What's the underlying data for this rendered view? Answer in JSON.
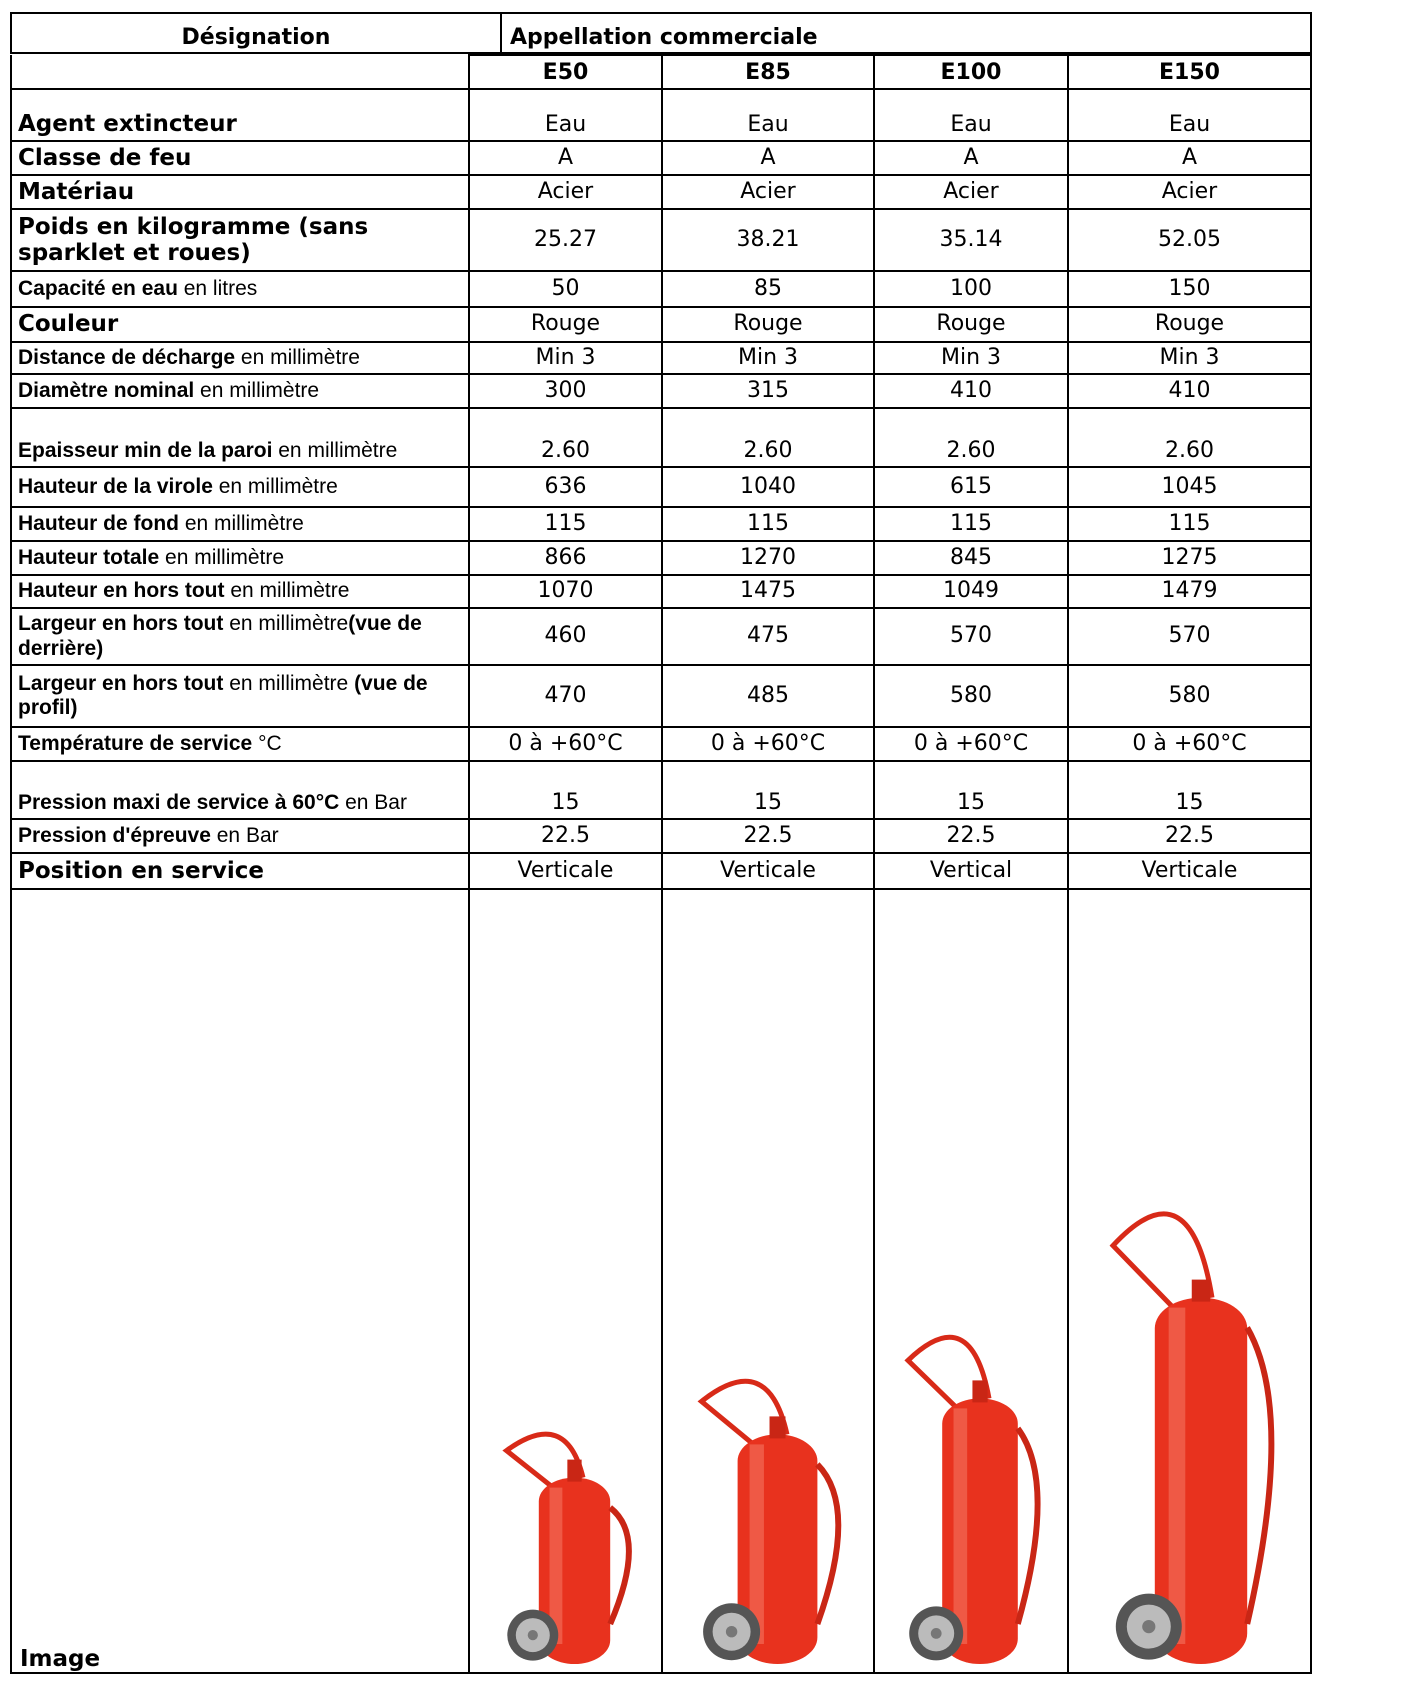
{
  "table": {
    "header": {
      "designation": "Désignation",
      "appellation": "Appellation commerciale"
    },
    "columns": [
      "E50",
      "E85",
      "E100",
      "E150"
    ],
    "rows": [
      {
        "label": [
          "Agent extincteur"
        ],
        "values": [
          "Eau",
          "Eau",
          "Eau",
          "Eau"
        ]
      },
      {
        "label": [
          "Classe de feu"
        ],
        "values": [
          "A",
          "A",
          "A",
          "A"
        ]
      },
      {
        "label": [
          "Matériau"
        ],
        "values": [
          "Acier",
          "Acier",
          "Acier",
          "Acier"
        ]
      },
      {
        "label": [
          "Poids en kilogramme (sans sparklet et roues)"
        ],
        "values": [
          "25.27",
          "38.21",
          "35.14",
          "52.05"
        ]
      },
      {
        "label": [
          "Capacité en eau",
          " en litres"
        ],
        "values": [
          "50",
          "85",
          "100",
          "150"
        ]
      },
      {
        "label": [
          "Couleur"
        ],
        "values": [
          "Rouge",
          "Rouge",
          "Rouge",
          "Rouge"
        ]
      },
      {
        "label": [
          "Distance de décharge",
          " en millimètre"
        ],
        "values": [
          "Min 3",
          "Min 3",
          "Min 3",
          "Min 3"
        ]
      },
      {
        "label": [
          "Diamètre nominal",
          " en millimètre"
        ],
        "values": [
          "300",
          "315",
          "410",
          "410"
        ]
      },
      {
        "label": [
          "Epaisseur min de la paroi",
          " en millimètre"
        ],
        "values": [
          "2.60",
          "2.60",
          "2.60",
          "2.60"
        ]
      },
      {
        "label": [
          "Hauteur de la virole",
          " en millimètre"
        ],
        "values": [
          "636",
          "1040",
          "615",
          "1045"
        ]
      },
      {
        "label": [
          "Hauteur de fond",
          " en millimètre"
        ],
        "values": [
          "115",
          "115",
          "115",
          "115"
        ]
      },
      {
        "label": [
          "Hauteur totale",
          " en millimètre"
        ],
        "values": [
          "866",
          "1270",
          "845",
          "1275"
        ]
      },
      {
        "label": [
          "Hauteur en hors tout",
          " en millimètre"
        ],
        "values": [
          "1070",
          "1475",
          "1049",
          "1479"
        ]
      },
      {
        "label": [
          "Largeur en hors tout",
          " en millimètre",
          "(vue de derrière)"
        ],
        "values": [
          "460",
          "475",
          "570",
          "570"
        ]
      },
      {
        "label": [
          "Largeur en hors tout",
          " en millimètre ",
          "(vue de profil)"
        ],
        "values": [
          "470",
          "485",
          "580",
          "580"
        ]
      },
      {
        "label": [
          "Température de service",
          " °C"
        ],
        "values": [
          "0 à +60°C",
          "0 à +60°C",
          "0 à +60°C",
          "0 à +60°C"
        ]
      },
      {
        "label": [
          "Pression maxi de service à 60°C",
          " en Bar"
        ],
        "values": [
          "15",
          "15",
          "15",
          "15"
        ]
      },
      {
        "label": [
          "Pression d'épreuve",
          " en Bar"
        ],
        "values": [
          "22.5",
          "22.5",
          "22.5",
          "22.5"
        ]
      },
      {
        "label": [
          "Position en service"
        ],
        "values": [
          "Verticale",
          "Verticale",
          "Vertical",
          "Verticale"
        ]
      }
    ],
    "image_label": "Image"
  }
}
